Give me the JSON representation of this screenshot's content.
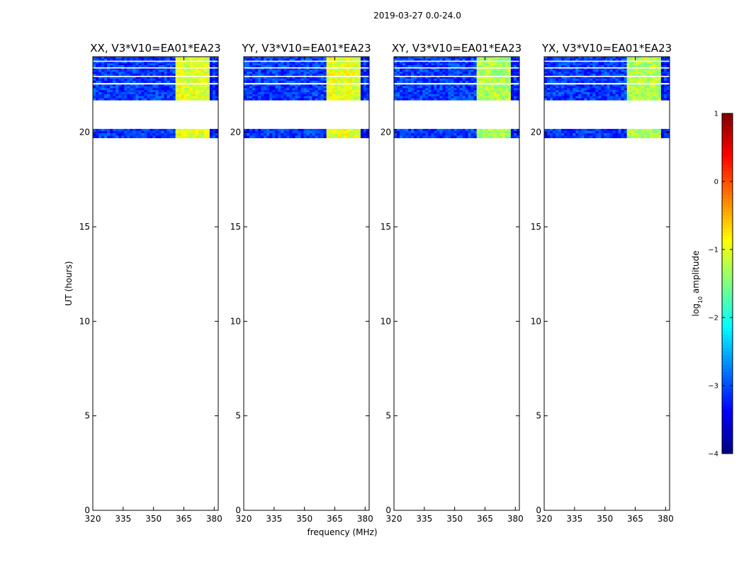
{
  "figure": {
    "suptitle": "2019-03-27 0.0-24.0"
  },
  "chart_data": {
    "type": "heatmap",
    "title": "2019-03-27 0.0-24.0",
    "xlabel": "frequency (MHz)",
    "ylabel": "UT (hours)",
    "xlim": [
      320,
      382
    ],
    "ylim": [
      0,
      24
    ],
    "xticks": [
      320,
      335,
      350,
      365,
      380
    ],
    "yticks": [
      0,
      5,
      10,
      15,
      20
    ],
    "panels": [
      {
        "title": "XX, V3*V10=EA01*EA23",
        "bright_columns": [
          0.42,
          0.3,
          0.4,
          0.32
        ],
        "strength": 1.0
      },
      {
        "title": "YY, V3*V10=EA01*EA23",
        "bright_columns": [
          0.4,
          0.36,
          0.38,
          0.34
        ],
        "strength": 1.0
      },
      {
        "title": "XY, V3*V10=EA01*EA23",
        "bright_columns": [
          0.32,
          0.3,
          0.3,
          0.3
        ],
        "strength": 0.75
      },
      {
        "title": "YX, V3*V10=EA01*EA23",
        "bright_columns": [
          0.32,
          0.3,
          0.3,
          0.3
        ],
        "strength": 0.75
      }
    ],
    "data_blocks_ut": [
      [
        19.7,
        20.2
      ],
      [
        21.7,
        22.55
      ],
      [
        22.62,
        22.95
      ],
      [
        23.0,
        23.4
      ],
      [
        23.45,
        23.75
      ],
      [
        23.8,
        24.0
      ]
    ],
    "background_log10_amplitude": -3.1,
    "bright_band_mhz": [
      361.5,
      378.5
    ],
    "bright_log10_amplitude": -1.4,
    "colorbar": {
      "label_prefix": "log",
      "label_sub": "10",
      "label_suffix": " amplitude",
      "range": [
        -4,
        1
      ],
      "ticks": [
        1,
        0,
        -1,
        -2,
        -3,
        -4
      ],
      "tick_labels": [
        "1",
        "0",
        "−1",
        "−2",
        "−3",
        "−4"
      ],
      "colormap": "jet"
    }
  }
}
